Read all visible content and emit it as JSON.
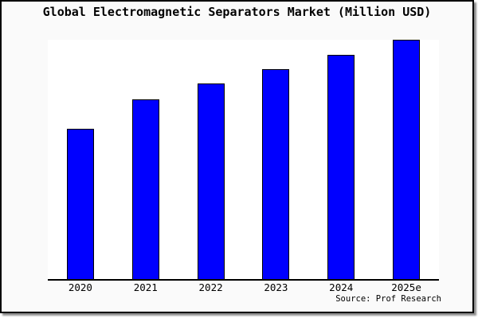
{
  "chart_data": {
    "type": "bar",
    "title": "Global Electromagnetic Separators Market (Million USD)",
    "categories": [
      "2020",
      "2021",
      "2022",
      "2023",
      "2024",
      "2025e"
    ],
    "values": [
      62.8,
      75.1,
      81.7,
      87.7,
      93.7,
      100
    ],
    "note": "y-axis has no ticks or labels in the image; values are estimated relative units with 2025e = 100",
    "xlabel": "",
    "ylabel": "",
    "ylim": [
      0,
      100
    ],
    "grid": false,
    "legend": false,
    "source": "Source: Prof Research",
    "colors": {
      "bar_fill": "#0000ff",
      "bar_border": "#000000",
      "axis": "#000000",
      "plot_bg": "#ffffff",
      "frame_bg": "#fafafa",
      "frame_border": "#000000"
    }
  }
}
